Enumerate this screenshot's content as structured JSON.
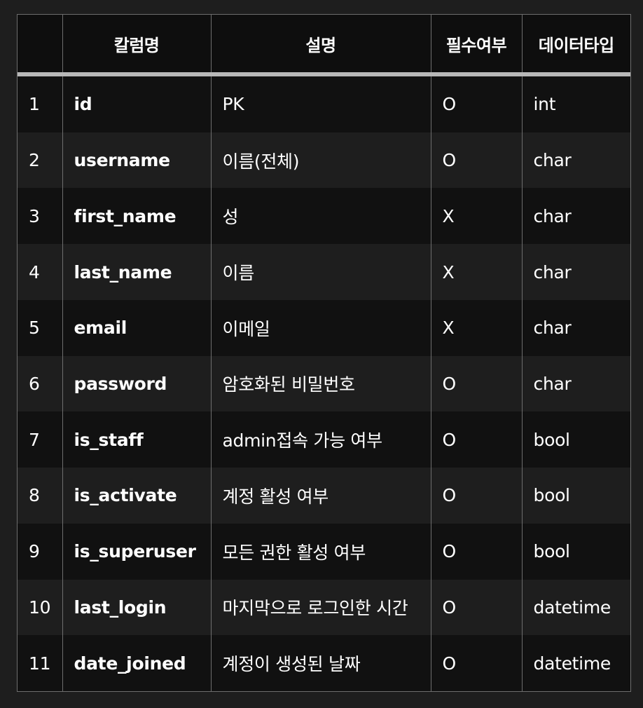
{
  "table": {
    "headers": [
      "",
      "칼럼명",
      "설명",
      "필수여부",
      "데이터타입"
    ],
    "rows": [
      {
        "no": "1",
        "column": "id",
        "description": "PK",
        "required": "O",
        "type": "int"
      },
      {
        "no": "2",
        "column": "username",
        "description": "이름(전체)",
        "required": "O",
        "type": "char"
      },
      {
        "no": "3",
        "column": "first_name",
        "description": "성",
        "required": "X",
        "type": "char"
      },
      {
        "no": "4",
        "column": "last_name",
        "description": "이름",
        "required": "X",
        "type": "char"
      },
      {
        "no": "5",
        "column": "email",
        "description": "이메일",
        "required": "X",
        "type": "char"
      },
      {
        "no": "6",
        "column": "password",
        "description": "암호화된 비밀번호",
        "required": "O",
        "type": "char"
      },
      {
        "no": "7",
        "column": "is_staff",
        "description": "admin접속 가능 여부",
        "required": "O",
        "type": "bool"
      },
      {
        "no": "8",
        "column": "is_activate",
        "description": "계정 활성 여부",
        "required": "O",
        "type": "bool"
      },
      {
        "no": "9",
        "column": "is_superuser",
        "description": "모든 권한 활성 여부",
        "required": "O",
        "type": "bool"
      },
      {
        "no": "10",
        "column": "last_login",
        "description": "마지막으로 로그인한 시간",
        "required": "O",
        "type": "datetime"
      },
      {
        "no": "11",
        "column": "date_joined",
        "description": "계정이 생성된 날짜",
        "required": "O",
        "type": "datetime"
      }
    ]
  }
}
